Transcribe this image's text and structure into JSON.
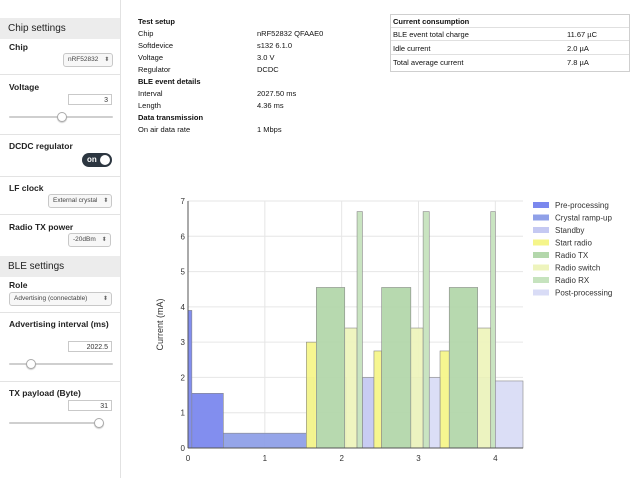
{
  "chip_settings": {
    "header": "Chip settings",
    "chip": {
      "label": "Chip",
      "value": "nRF52832"
    },
    "voltage": {
      "label": "Voltage",
      "value": "3",
      "slider_fraction": 0.5
    },
    "dcdc": {
      "label": "DCDC regulator",
      "state": "on"
    },
    "lf_clock": {
      "label": "LF clock",
      "value": "External crystal"
    },
    "radio_tx_power": {
      "label": "Radio TX power",
      "value": "-20dBm"
    }
  },
  "ble_settings": {
    "header": "BLE settings",
    "role": {
      "label": "Role",
      "value": "Advertising (connectable)"
    },
    "adv_interval": {
      "label": "Advertising interval (ms)",
      "value": "2022.5",
      "slider_fraction": 0.2
    },
    "tx_payload": {
      "label": "TX payload (Byte)",
      "value": "31",
      "slider_fraction": 0.97
    }
  },
  "info": {
    "test_setup_title": "Test setup",
    "chip_label": "Chip",
    "chip_value": "nRF52832 QFAAE0",
    "softdevice_label": "Softdevice",
    "softdevice_value": "s132 6.1.0",
    "voltage_label": "Voltage",
    "voltage_value": "3.0 V",
    "regulator_label": "Regulator",
    "regulator_value": "DCDC",
    "ble_title": "BLE event details",
    "interval_label": "Interval",
    "interval_value": "2027.50 ms",
    "length_label": "Length",
    "length_value": "4.36 ms",
    "dt_title": "Data transmission",
    "rate_label": "On air data rate",
    "rate_value": "1 Mbps"
  },
  "consumption": {
    "title": "Current consumption",
    "rows": [
      {
        "label": "BLE event total charge",
        "value": "11.67 µC"
      },
      {
        "label": "Idle current",
        "value": "2.0 µA"
      },
      {
        "label": "Total average current",
        "value": "7.8 µA"
      }
    ]
  },
  "chart_data": {
    "type": "area",
    "ylabel": "Current (mA)",
    "xlim": [
      0,
      4.36
    ],
    "ylim": [
      0,
      7
    ],
    "xticks": [
      "0",
      "1",
      "2",
      "3",
      "4"
    ],
    "yticks": [
      "0",
      "1",
      "2",
      "3",
      "4",
      "5",
      "6",
      "7"
    ],
    "grid": true,
    "legend_position": "top-right",
    "series": [
      {
        "name": "Pre-processing",
        "color": "#7b88ee",
        "segments": [
          [
            0,
            0.05,
            3.9
          ],
          [
            0.05,
            0.46,
            1.55
          ]
        ]
      },
      {
        "name": "Crystal ramp-up",
        "color": "#8fa0e8",
        "segments": [
          [
            0.46,
            1.54,
            0.42
          ]
        ]
      },
      {
        "name": "Standby",
        "color": "#c5c9f2",
        "segments": [
          [
            1.54,
            1.64,
            2.0
          ],
          [
            2.04,
            2.06,
            2.0
          ],
          [
            2.27,
            2.42,
            2.0
          ],
          [
            2.9,
            3.06,
            2.0
          ],
          [
            3.77,
            3.94,
            2.0
          ]
        ]
      },
      {
        "name": "Start radio",
        "color": "#f5f58a",
        "segments": [
          [
            1.54,
            1.67,
            3.0
          ],
          [
            2.42,
            2.52,
            2.75
          ],
          [
            3.28,
            3.4,
            2.75
          ]
        ]
      },
      {
        "name": "Radio TX",
        "color": "#b3d7ab",
        "segments": [
          [
            1.67,
            2.04,
            4.55
          ],
          [
            2.52,
            2.9,
            4.55
          ],
          [
            3.4,
            3.77,
            4.55
          ]
        ]
      },
      {
        "name": "Radio switch",
        "color": "#eef4bd",
        "segments": [
          [
            2.04,
            2.2,
            3.4
          ],
          [
            2.9,
            3.06,
            3.4
          ],
          [
            3.77,
            3.94,
            3.4
          ]
        ]
      },
      {
        "name": "Radio RX",
        "color": "#c6e3be",
        "segments": [
          [
            2.2,
            2.27,
            6.7
          ],
          [
            3.06,
            3.14,
            6.7
          ],
          [
            3.94,
            4.0,
            6.7
          ]
        ]
      },
      {
        "name": "Post-processing",
        "color": "#d9dcf6",
        "segments": [
          [
            3.14,
            3.28,
            2.0
          ],
          [
            4.0,
            4.36,
            1.9
          ]
        ]
      }
    ]
  }
}
